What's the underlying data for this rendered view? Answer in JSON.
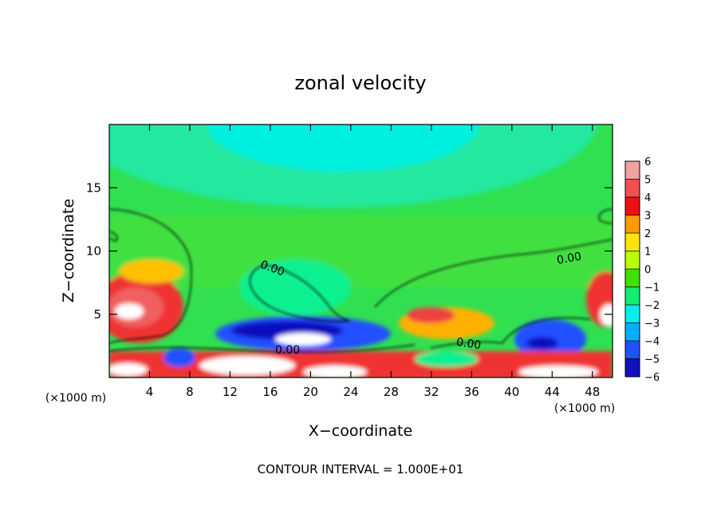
{
  "chart_data": {
    "type": "heatmap",
    "title": "zonal velocity",
    "xlabel": "X−coordinate",
    "ylabel": "Z−coordinate",
    "x_unit_label": "(×1000 m)",
    "x_unit_label_right": "(×1000 m)",
    "xlim": [
      0,
      50
    ],
    "ylim": [
      0,
      20
    ],
    "x_ticks": [
      4,
      8,
      12,
      16,
      20,
      24,
      28,
      32,
      36,
      40,
      44,
      48
    ],
    "y_ticks": [
      5,
      10,
      15
    ],
    "colorbar": {
      "levels": [
        {
          "label": "6",
          "value": 6,
          "color": "#f4a0a0"
        },
        {
          "label": "5",
          "value": 5,
          "color": "#f05050"
        },
        {
          "label": "4",
          "value": 4,
          "color": "#f01010"
        },
        {
          "label": "3",
          "value": 3,
          "color": "#ff9a00"
        },
        {
          "label": "2",
          "value": 2,
          "color": "#ffe600"
        },
        {
          "label": "1",
          "value": 1,
          "color": "#b8ff00"
        },
        {
          "label": "0",
          "value": 0,
          "color": "#40e000"
        },
        {
          "label": "−1",
          "value": -1,
          "color": "#10f070"
        },
        {
          "label": "−2",
          "value": -2,
          "color": "#00f0f0"
        },
        {
          "label": "−3",
          "value": -3,
          "color": "#00b0ff"
        },
        {
          "label": "−4",
          "value": -4,
          "color": "#2050ff"
        },
        {
          "label": "−5",
          "value": -5,
          "color": "#1010c0"
        },
        {
          "label": "−6",
          "value": -6,
          "color": "#800090"
        }
      ]
    },
    "contour_labels": [
      "0.00",
      "0.00",
      "0.00",
      "0.00"
    ],
    "contour_interval_text": "CONTOUR INTERVAL = 1.000E+01"
  }
}
